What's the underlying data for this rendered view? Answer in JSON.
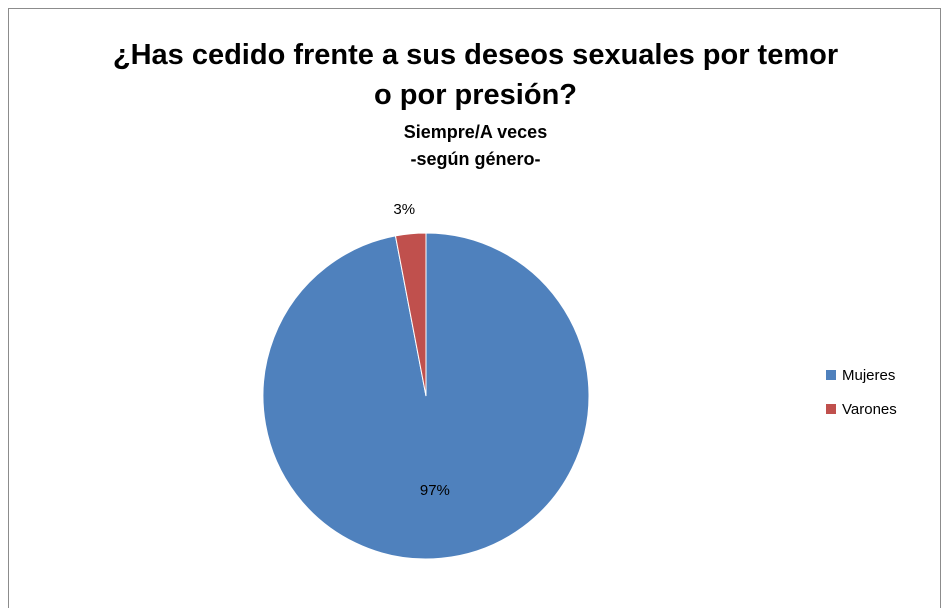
{
  "chart_data": {
    "type": "pie",
    "title_line1": "¿Has cedido frente a sus deseos sexuales por temor",
    "title_line2": "o por presión?",
    "subtitle_line1": "Siempre/A veces",
    "subtitle_line2": "-según género-",
    "categories": [
      "Mujeres",
      "Varones"
    ],
    "values": [
      97,
      3
    ],
    "data_labels": [
      "97%",
      "3%"
    ],
    "colors": [
      "#4f81bd",
      "#c0504d"
    ],
    "legend_position": "right"
  }
}
